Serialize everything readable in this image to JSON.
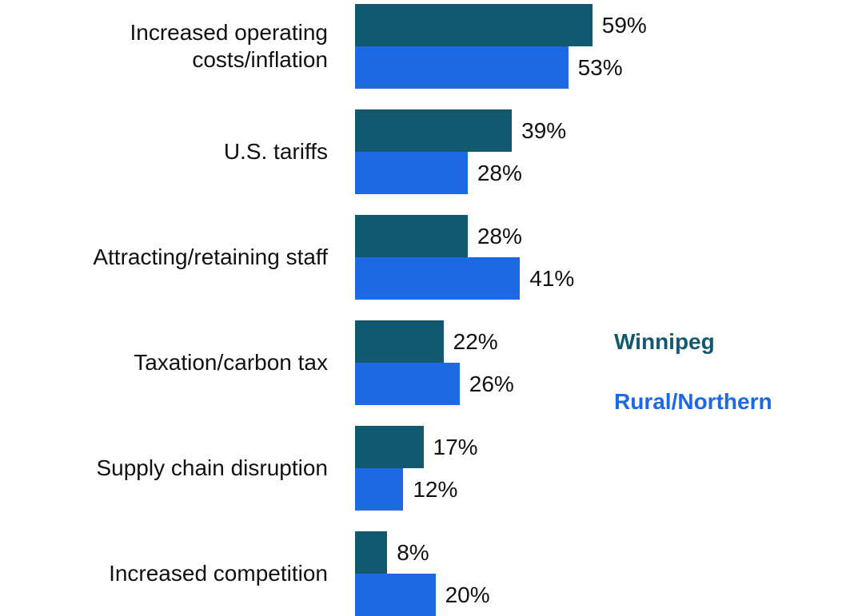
{
  "chart_data": {
    "type": "bar",
    "orientation": "horizontal",
    "categories": [
      "Increased operating costs/inflation",
      "U.S. tariffs",
      "Attracting/retaining staff",
      "Taxation/carbon tax",
      "Supply chain disruption",
      "Increased competition"
    ],
    "series": [
      {
        "name": "Winnipeg",
        "color": "#12596f",
        "values": [
          59,
          39,
          28,
          22,
          17,
          8
        ],
        "value_labels": [
          "59%",
          "39%",
          "28%",
          "22%",
          "17%",
          "8%"
        ]
      },
      {
        "name": "Rural/Northern",
        "color": "#1d68e3",
        "values": [
          53,
          28,
          41,
          26,
          12,
          20
        ],
        "value_labels": [
          "53%",
          "28%",
          "41%",
          "26%",
          "12%",
          "20%"
        ]
      }
    ]
  }
}
